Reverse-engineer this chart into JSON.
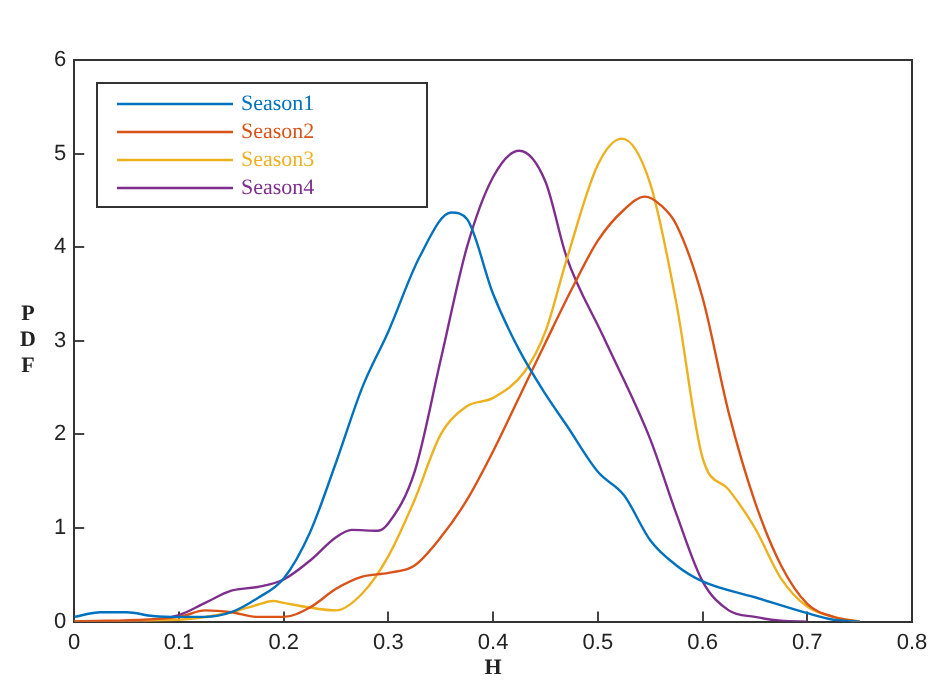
{
  "chart_data": {
    "type": "line",
    "xlabel": "H",
    "ylabel": "PDF",
    "xlim": [
      0,
      0.8
    ],
    "xticks": [
      0,
      0.1,
      0.2,
      0.3,
      0.4,
      0.5,
      0.6,
      0.7,
      0.8
    ],
    "ylim": [
      0,
      6
    ],
    "yticks": [
      0,
      1,
      2,
      3,
      4,
      5,
      6
    ],
    "grid": false,
    "legend": "top left",
    "marker": "none",
    "line_style": "solid",
    "series": [
      {
        "name": "Season1",
        "color": "#0072bd",
        "x": [
          0,
          0.025,
          0.05,
          0.075,
          0.1,
          0.125,
          0.15,
          0.175,
          0.2,
          0.225,
          0.25,
          0.275,
          0.3,
          0.33,
          0.36,
          0.375,
          0.4,
          0.425,
          0.45,
          0.47,
          0.5,
          0.525,
          0.55,
          0.575,
          0.6,
          0.65,
          0.7,
          0.725,
          0.75
        ],
        "values": [
          0.05,
          0.1,
          0.1,
          0.06,
          0.05,
          0.05,
          0.1,
          0.25,
          0.46,
          0.95,
          1.7,
          2.5,
          3.1,
          3.9,
          4.37,
          4.3,
          3.5,
          2.9,
          2.43,
          2.1,
          1.6,
          1.35,
          0.87,
          0.6,
          0.43,
          0.26,
          0.09,
          0.02,
          0
        ]
      },
      {
        "name": "Season2",
        "color": "#d95319",
        "x": [
          0,
          0.1,
          0.125,
          0.15,
          0.175,
          0.2,
          0.225,
          0.25,
          0.275,
          0.3,
          0.325,
          0.35,
          0.375,
          0.4,
          0.425,
          0.45,
          0.475,
          0.5,
          0.525,
          0.545,
          0.56,
          0.575,
          0.6,
          0.625,
          0.65,
          0.675,
          0.7,
          0.725,
          0.75
        ],
        "values": [
          0,
          0.05,
          0.12,
          0.1,
          0.05,
          0.05,
          0.15,
          0.35,
          0.48,
          0.52,
          0.6,
          0.9,
          1.3,
          1.82,
          2.4,
          2.98,
          3.55,
          4.07,
          4.4,
          4.54,
          4.45,
          4.24,
          3.46,
          2.23,
          1.28,
          0.6,
          0.19,
          0.05,
          0
        ]
      },
      {
        "name": "Season3",
        "color": "#edb120",
        "x": [
          0,
          0.1,
          0.15,
          0.175,
          0.19,
          0.2,
          0.225,
          0.25,
          0.275,
          0.3,
          0.325,
          0.35,
          0.375,
          0.4,
          0.43,
          0.45,
          0.47,
          0.5,
          0.523,
          0.55,
          0.575,
          0.6,
          0.625,
          0.65,
          0.675,
          0.7,
          0.725,
          0.75
        ],
        "values": [
          0,
          0.02,
          0.1,
          0.18,
          0.22,
          0.2,
          0.15,
          0.12,
          0.3,
          0.7,
          1.3,
          2.0,
          2.3,
          2.39,
          2.67,
          3.1,
          3.86,
          4.88,
          5.16,
          4.68,
          3.4,
          1.75,
          1.41,
          1.0,
          0.46,
          0.16,
          0.05,
          0
        ]
      },
      {
        "name": "Season4",
        "color": "#7e2f8e",
        "x": [
          0,
          0.05,
          0.1,
          0.125,
          0.15,
          0.175,
          0.2,
          0.225,
          0.25,
          0.265,
          0.29,
          0.3,
          0.325,
          0.35,
          0.375,
          0.4,
          0.425,
          0.45,
          0.47,
          0.505,
          0.55,
          0.575,
          0.6,
          0.625,
          0.65,
          0.675,
          0.7
        ],
        "values": [
          0,
          0,
          0.07,
          0.2,
          0.33,
          0.37,
          0.45,
          0.65,
          0.9,
          0.98,
          0.97,
          1.05,
          1.6,
          2.8,
          4.0,
          4.75,
          5.03,
          4.7,
          3.9,
          3.05,
          1.95,
          1.15,
          0.43,
          0.12,
          0.05,
          0.01,
          0
        ]
      }
    ]
  }
}
